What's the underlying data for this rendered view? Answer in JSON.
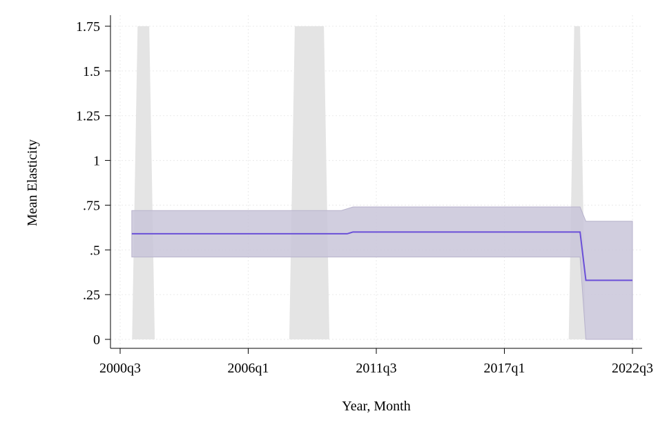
{
  "chart_data": {
    "type": "line",
    "xlabel": "Year, Month",
    "ylabel": "Mean Elasticity",
    "x_ticks": [
      "2000q3",
      "2006q1",
      "2011q3",
      "2017q1",
      "2022q3"
    ],
    "y_ticks": [
      "0",
      ".25",
      ".5",
      ".75",
      "1",
      "1.25",
      "1.5",
      "1.75"
    ],
    "xlim": [
      "2000q3",
      "2022q3"
    ],
    "ylim": [
      0,
      1.75
    ],
    "grid": true,
    "series": [
      {
        "kind": "line",
        "color": "#6a4fd8",
        "points": [
          {
            "x": "2001q1",
            "y": 0.59
          },
          {
            "x": "2010q2",
            "y": 0.59
          },
          {
            "x": "2010q3",
            "y": 0.6
          },
          {
            "x": "2020q2",
            "y": 0.6
          },
          {
            "x": "2020q3",
            "y": 0.33
          },
          {
            "x": "2022q3",
            "y": 0.33
          }
        ]
      },
      {
        "kind": "band",
        "color": "#c9c5d9",
        "points": [
          {
            "x": "2001q1",
            "low": 0.46,
            "high": 0.72
          },
          {
            "x": "2010q1",
            "low": 0.46,
            "high": 0.72
          },
          {
            "x": "2010q3",
            "low": 0.46,
            "high": 0.74
          },
          {
            "x": "2020q2",
            "low": 0.46,
            "high": 0.74
          },
          {
            "x": "2020q3",
            "low": 0.0,
            "high": 0.66
          },
          {
            "x": "2022q3",
            "low": 0.0,
            "high": 0.66
          }
        ]
      }
    ],
    "shaded_regions": [
      {
        "from": "2001q2",
        "to": "2001q4",
        "color": "#e4e4e4"
      },
      {
        "from": "2008q1",
        "to": "2009q2",
        "color": "#e4e4e4"
      },
      {
        "from": "2020q1",
        "to": "2020q2",
        "color": "#e4e4e4"
      }
    ]
  }
}
